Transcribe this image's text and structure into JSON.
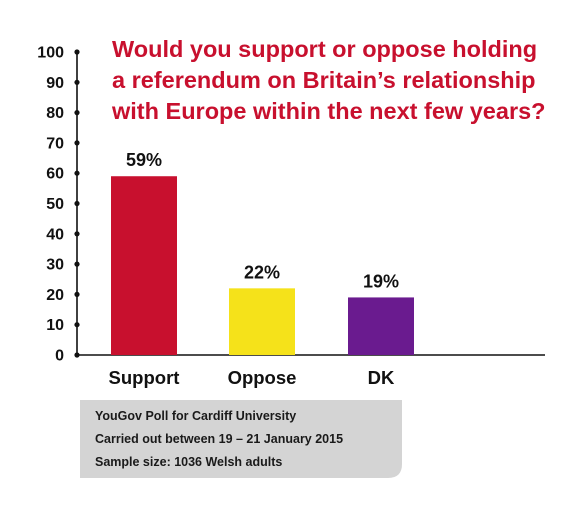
{
  "chart_data": {
    "type": "bar",
    "title": "Would you support or oppose holding a referendum on Britain’s relationship with Europe within the next few years?",
    "title_lines": [
      "Would you support or oppose holding",
      "a referendum on Britain’s relationship",
      "with Europe within the next few years?"
    ],
    "categories": [
      "Support",
      "Oppose",
      "DK"
    ],
    "values": [
      59,
      22,
      19
    ],
    "data_labels": [
      "59%",
      "22%",
      "19%"
    ],
    "colors": [
      "#c8102e",
      "#f5e21a",
      "#6a1b8f"
    ],
    "ylim": [
      0,
      100
    ],
    "yticks": [
      0,
      10,
      20,
      30,
      40,
      50,
      60,
      70,
      80,
      90,
      100
    ],
    "xlabel": "",
    "ylabel": "",
    "grid": false,
    "legend": "none"
  },
  "note": {
    "lines": [
      "YouGov Poll for Cardiff University",
      "Carried out between 19 – 21 January 2015",
      "Sample size: 1036 Welsh adults"
    ]
  },
  "colors": {
    "title": "#c8102e",
    "axis": "#111111",
    "note_box": "#d4d4d4"
  }
}
